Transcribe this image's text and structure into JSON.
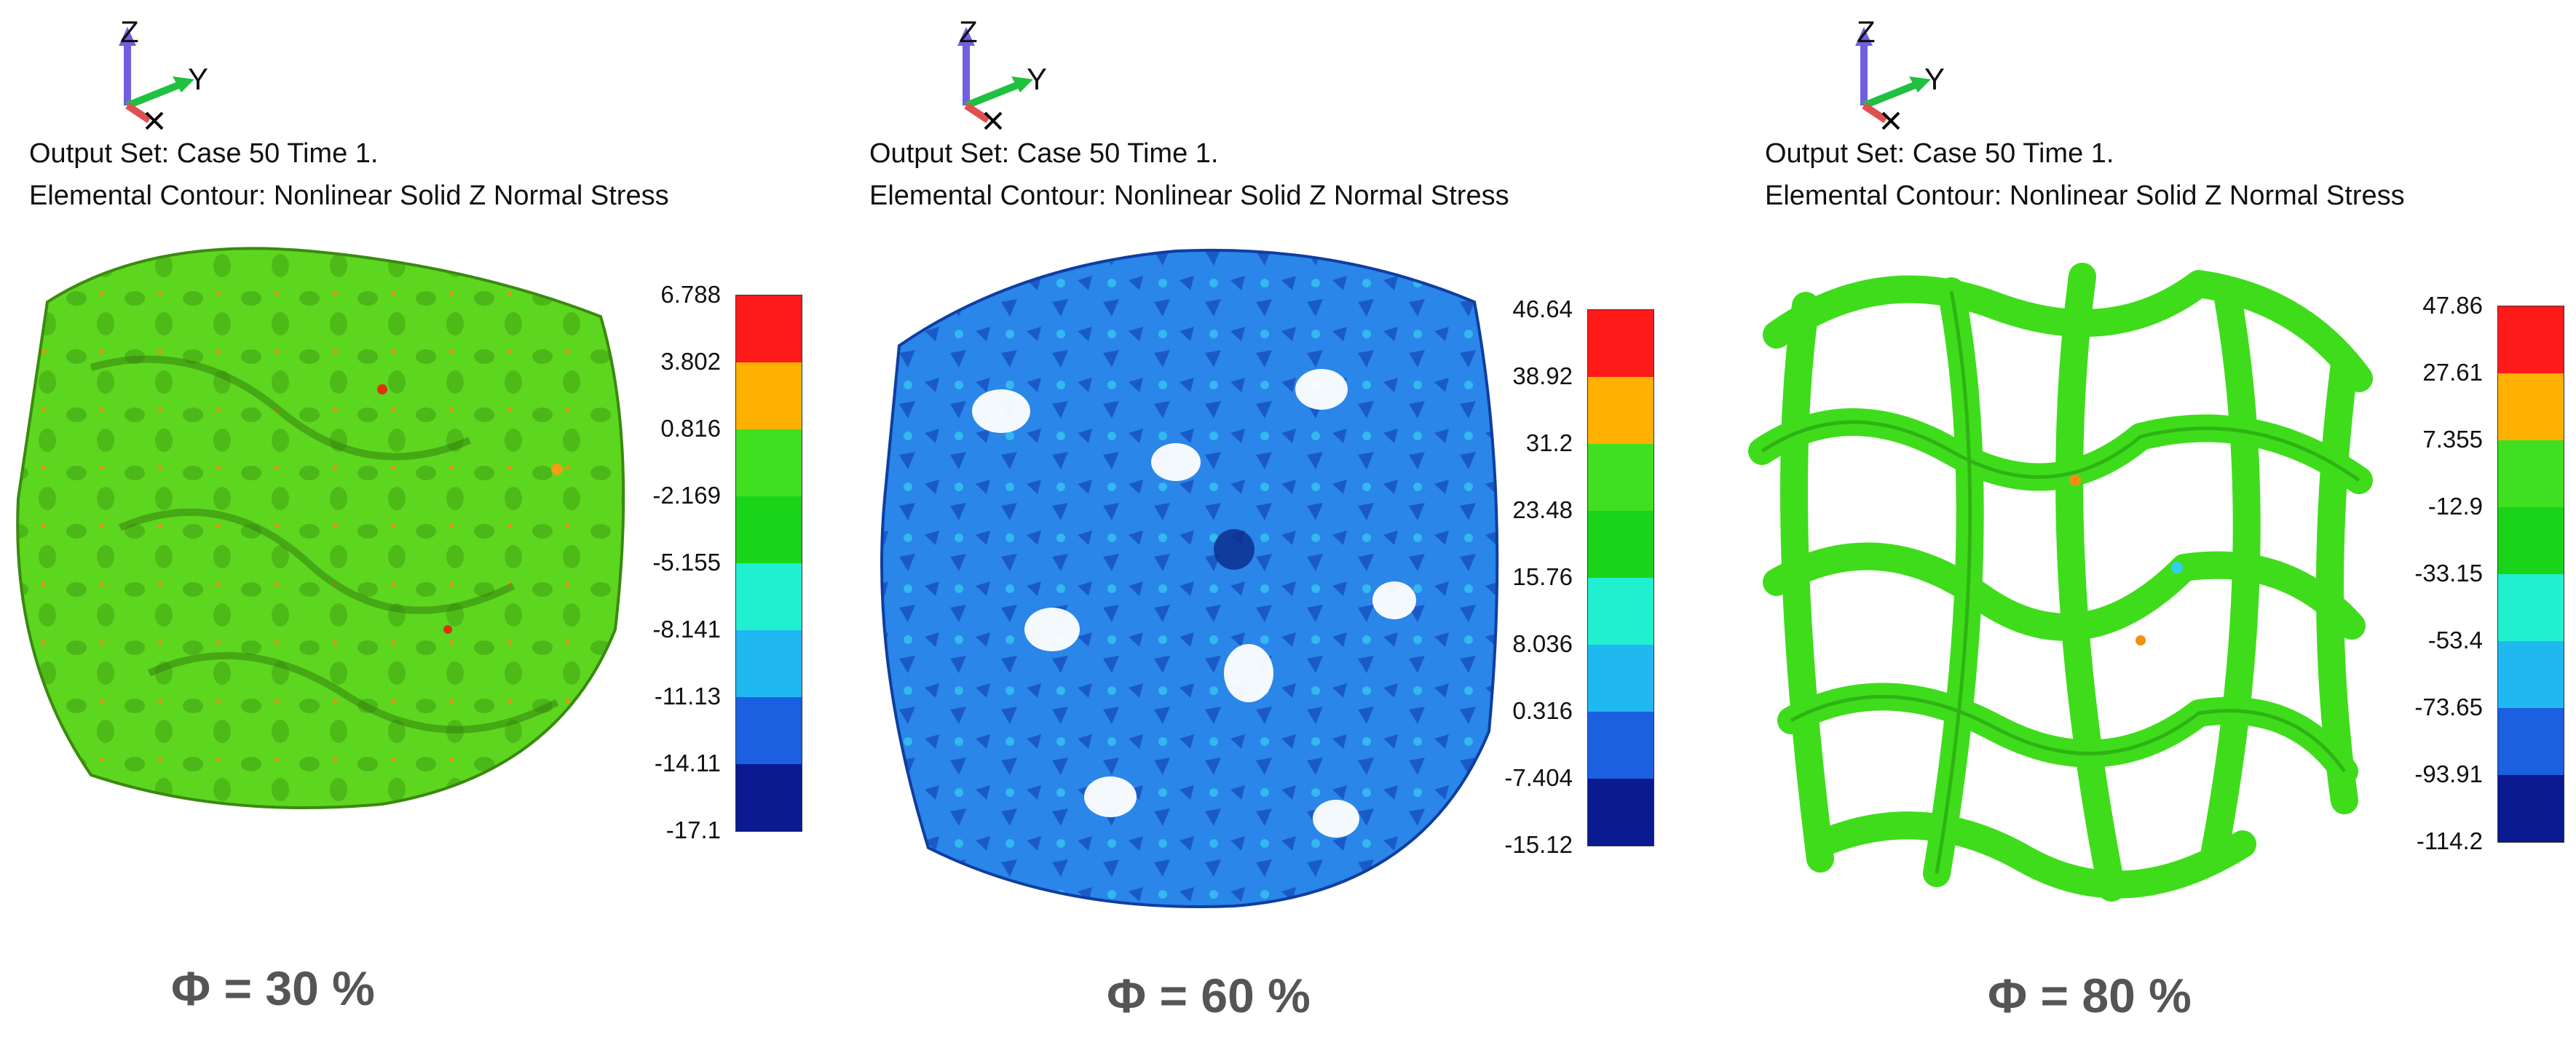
{
  "panels": [
    {
      "axes": {
        "z_label": "Z",
        "y_label": "Y",
        "x_label": "X"
      },
      "output_set": "Output Set: Case 50 Time 1.",
      "contour": "Elemental Contour: Nonlinear Solid Z Normal Stress",
      "legend_ticks": [
        "6.788",
        "3.802",
        "0.816",
        "-2.169",
        "-5.155",
        "-8.141",
        "-11.13",
        "-14.11",
        "-17.1"
      ],
      "dominant_color": "#5dd61f",
      "phi_label": "Φ = 30 %"
    },
    {
      "axes": {
        "z_label": "Z",
        "y_label": "Y",
        "x_label": "X"
      },
      "output_set": "Output Set: Case 50 Time 1.",
      "contour": "Elemental Contour: Nonlinear Solid Z Normal Stress",
      "legend_ticks": [
        "46.64",
        "38.92",
        "31.2",
        "23.48",
        "15.76",
        "8.036",
        "0.316",
        "-7.404",
        "-15.12"
      ],
      "dominant_color": "#1f7fe0",
      "phi_label": "Φ = 60 %"
    },
    {
      "axes": {
        "z_label": "Z",
        "y_label": "Y",
        "x_label": "X"
      },
      "output_set": "Output Set: Case 50 Time 1.",
      "contour": "Elemental Contour: Nonlinear Solid Z Normal Stress",
      "legend_ticks": [
        "47.86",
        "27.61",
        "7.355",
        "-12.9",
        "-33.15",
        "-53.4",
        "-73.65",
        "-93.91",
        "-114.2"
      ],
      "dominant_color": "#3fdc1c",
      "phi_label": "Φ = 80 %"
    }
  ],
  "legend_colors": [
    "#ff1a1a",
    "#ffb000",
    "#40e020",
    "#1ad41a",
    "#20f0d0",
    "#20b8f0",
    "#1a60e0",
    "#0a1a90"
  ]
}
